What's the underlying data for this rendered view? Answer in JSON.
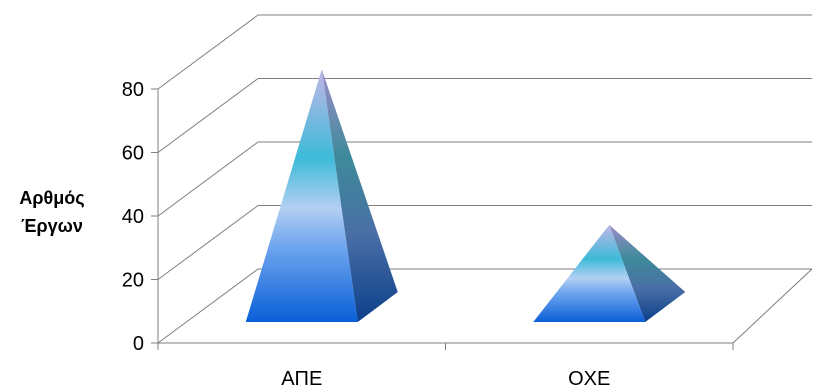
{
  "chart_data": {
    "type": "bar",
    "style": "3d-pyramid",
    "categories": [
      "ΑΠΕ",
      "ΟΧΕ"
    ],
    "values": [
      84,
      35
    ],
    "ylim": [
      0,
      80
    ],
    "yticks": [
      "0",
      "20",
      "40",
      "60",
      "80"
    ],
    "ylabel_lines": [
      "Αρθμός",
      "Έργων"
    ],
    "xlabel": "",
    "title": "",
    "grid": true,
    "legend": "none",
    "colors": {
      "gridline": "#7f7f7f",
      "pyramid_base": "#0a5fd8",
      "pyramid_mid": "#a8c8f0",
      "pyramid_cyan": "#3dbad8",
      "pyramid_top": "#b9a9e0",
      "side_dark": "#0b3f8a"
    }
  }
}
